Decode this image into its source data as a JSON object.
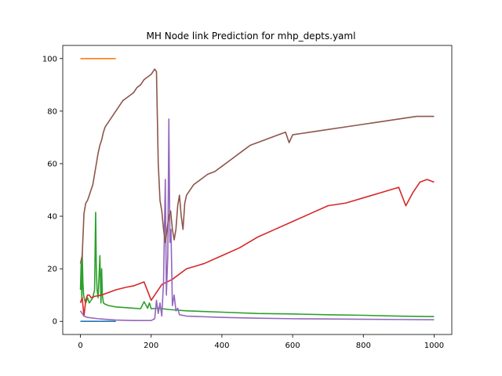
{
  "chart_data": {
    "type": "line",
    "title": "MH Node link Prediction for mhp_depts.yaml",
    "xlabel": "",
    "ylabel": "",
    "xlim": [
      -50,
      1050
    ],
    "ylim": [
      -5,
      105
    ],
    "xticks": [
      0,
      200,
      400,
      600,
      800,
      1000
    ],
    "yticks": [
      0,
      20,
      40,
      60,
      80,
      100
    ],
    "xtick_labels": [
      "0",
      "200",
      "400",
      "600",
      "800",
      "1000"
    ],
    "ytick_labels": [
      "0",
      "20",
      "40",
      "60",
      "80",
      "100"
    ],
    "grid": false,
    "legend": "none",
    "series": [
      {
        "color": "#1f77b4",
        "x": [
          0,
          100
        ],
        "y": [
          0,
          0
        ]
      },
      {
        "color": "#ff7f0e",
        "x": [
          0,
          100
        ],
        "y": [
          100,
          100
        ]
      },
      {
        "color": "#2ca02c",
        "x": [
          0,
          2,
          4,
          5,
          7,
          9,
          12,
          15,
          20,
          25,
          30,
          35,
          40,
          43,
          45,
          47,
          50,
          55,
          58,
          60,
          62,
          65,
          70,
          80,
          100,
          150,
          170,
          180,
          190,
          195,
          200,
          220,
          250,
          300,
          400,
          500,
          600,
          700,
          800,
          900,
          1000
        ],
        "y": [
          12,
          22,
          8,
          26,
          15,
          10,
          8,
          7,
          9,
          7,
          8,
          9,
          12,
          41.5,
          20,
          12,
          9,
          25,
          7,
          20,
          10,
          7,
          6.5,
          6,
          5.5,
          5,
          4.8,
          7.5,
          5,
          7,
          4.8,
          5,
          4.5,
          4,
          3.5,
          3,
          2.8,
          2.5,
          2.3,
          2,
          1.8
        ]
      },
      {
        "color": "#d62728",
        "x": [
          0,
          5,
          10,
          15,
          20,
          25,
          30,
          40,
          60,
          80,
          100,
          130,
          150,
          180,
          200,
          230,
          260,
          300,
          350,
          400,
          450,
          500,
          550,
          600,
          650,
          700,
          750,
          800,
          850,
          900,
          920,
          940,
          960,
          980,
          1000
        ],
        "y": [
          7,
          9,
          2,
          8,
          10,
          10,
          9,
          9.5,
          10,
          11,
          12,
          13,
          13.5,
          15,
          8,
          14,
          16,
          20,
          22,
          25,
          28,
          32,
          35,
          38,
          41,
          44,
          45,
          47,
          49,
          51,
          44,
          49,
          53,
          54,
          53
        ]
      },
      {
        "color": "#9467bd",
        "x": [
          0,
          5,
          10,
          20,
          50,
          100,
          150,
          200,
          210,
          215,
          220,
          225,
          230,
          235,
          240,
          243,
          247,
          250,
          253,
          256,
          260,
          265,
          270,
          275,
          280,
          300,
          400,
          500,
          600,
          700,
          800,
          900,
          1000
        ],
        "y": [
          4,
          3,
          2,
          1.5,
          1,
          0.5,
          0.3,
          0.3,
          1,
          8,
          3,
          7,
          2,
          15,
          54,
          10,
          25,
          77,
          30,
          35,
          6,
          10,
          4,
          5,
          2.5,
          2,
          1.5,
          1.2,
          1,
          0.9,
          0.8,
          0.7,
          0.6
        ]
      },
      {
        "color": "#8c564b",
        "x": [
          0,
          5,
          10,
          15,
          20,
          25,
          30,
          35,
          40,
          45,
          50,
          55,
          60,
          65,
          70,
          80,
          90,
          100,
          110,
          120,
          130,
          140,
          150,
          160,
          170,
          180,
          190,
          200,
          210,
          215,
          220,
          225,
          230,
          235,
          240,
          245,
          250,
          255,
          260,
          265,
          270,
          275,
          280,
          285,
          290,
          295,
          300,
          320,
          340,
          360,
          380,
          400,
          420,
          440,
          460,
          480,
          500,
          520,
          540,
          560,
          580,
          590,
          600,
          650,
          700,
          750,
          800,
          850,
          900,
          950,
          1000
        ],
        "y": [
          22,
          25,
          41,
          45,
          46,
          48,
          50,
          52,
          56,
          60,
          64,
          67,
          69,
          72,
          74,
          76,
          78,
          80,
          82,
          84,
          85,
          86,
          87,
          89,
          90,
          92,
          93,
          94,
          96,
          95,
          60,
          46,
          42,
          35,
          30,
          35,
          40,
          42,
          35,
          31,
          35,
          44,
          48,
          40,
          35,
          45,
          48,
          52,
          54,
          56,
          57,
          59,
          61,
          63,
          65,
          67,
          68,
          69,
          70,
          71,
          72,
          68,
          71,
          72,
          73,
          74,
          75,
          76,
          77,
          78,
          78
        ]
      }
    ]
  }
}
